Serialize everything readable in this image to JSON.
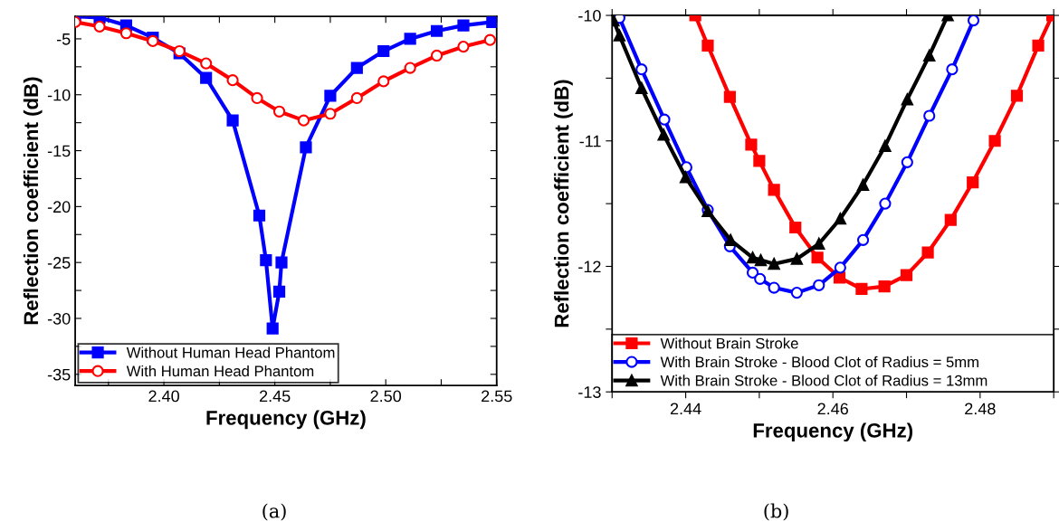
{
  "chart_data": [
    {
      "type": "line",
      "xlabel": "Frequency (GHz)",
      "ylabel": "Reflection coefficient (dB)",
      "annotations": [
        "(a)"
      ],
      "xlim": [
        2.36,
        2.55
      ],
      "ylim": [
        -36,
        -3
      ],
      "xticks": [
        {
          "value": 2.375,
          "label": null
        },
        {
          "value": 2.4,
          "label": "2.40"
        },
        {
          "value": 2.425,
          "label": null
        },
        2.45,
        {
          "value": 2.475,
          "label": null
        },
        {
          "value": 2.5,
          "label": "2.50"
        },
        {
          "value": 2.525,
          "label": null
        },
        2.55
      ],
      "yticks": [
        -35,
        {
          "value": -32.5,
          "label": null
        },
        -30,
        {
          "value": -27.5,
          "label": null
        },
        -25,
        {
          "value": -22.5,
          "label": null
        },
        -20,
        {
          "value": -17.5,
          "label": null
        },
        -15,
        {
          "value": -12.5,
          "label": null
        },
        -10,
        {
          "value": -7.5,
          "label": null
        },
        -5
      ],
      "legend": "bottom left",
      "grid": false,
      "line_style": "solid",
      "series": [
        {
          "name": "Without Human Head Phantom",
          "color": "#0000ff",
          "marker": "square",
          "x": [
            2.36,
            2.371,
            2.383,
            2.395,
            2.407,
            2.419,
            2.431,
            2.443,
            2.446,
            2.449,
            2.452,
            2.453,
            2.464,
            2.475,
            2.487,
            2.499,
            2.511,
            2.523,
            2.535,
            2.548
          ],
          "values": [
            -3.0,
            -3.1,
            -3.8,
            -4.9,
            -6.3,
            -8.5,
            -12.3,
            -20.8,
            -24.8,
            -30.9,
            -27.6,
            -25.0,
            -14.7,
            -10.1,
            -7.6,
            -6.1,
            -5.0,
            -4.3,
            -3.8,
            -3.5
          ]
        },
        {
          "name": "With Human Head Phantom",
          "color": "#ff0000",
          "marker": "circle",
          "x": [
            2.36,
            2.371,
            2.383,
            2.395,
            2.407,
            2.419,
            2.431,
            2.442,
            2.452,
            2.463,
            2.475,
            2.487,
            2.499,
            2.511,
            2.523,
            2.535,
            2.547
          ],
          "values": [
            -3.5,
            -3.9,
            -4.5,
            -5.2,
            -6.1,
            -7.2,
            -8.7,
            -10.3,
            -11.5,
            -12.3,
            -11.7,
            -10.3,
            -8.8,
            -7.6,
            -6.5,
            -5.7,
            -5.1
          ]
        }
      ]
    },
    {
      "type": "line",
      "xlabel": "Frequency (GHz)",
      "ylabel": "Reflection coefficient (dB)",
      "annotations": [
        "(b)"
      ],
      "xlim": [
        2.43,
        2.49
      ],
      "ylim": [
        -13,
        -10
      ],
      "xticks": [
        {
          "value": 2.43,
          "label": null
        },
        2.44,
        {
          "value": 2.45,
          "label": null
        },
        2.46,
        {
          "value": 2.47,
          "label": null
        },
        2.48,
        {
          "value": 2.49,
          "label": null
        }
      ],
      "yticks": [
        -13,
        {
          "value": -12.5,
          "label": null
        },
        -12,
        {
          "value": -11.5,
          "label": null
        },
        -11,
        {
          "value": -10.5,
          "label": null
        },
        -10
      ],
      "legend": "bottom",
      "grid": false,
      "line_style": "solid",
      "series": [
        {
          "name": "Without Brain Stroke",
          "color": "#ff0000",
          "marker": "square",
          "x": [
            2.4413,
            2.443,
            2.446,
            2.4489,
            2.45,
            2.452,
            2.4549,
            2.4579,
            2.4609,
            2.4639,
            2.467,
            2.47,
            2.4729,
            2.476,
            2.479,
            2.482,
            2.485,
            2.4879,
            2.4898
          ],
          "values": [
            -10.0,
            -10.24,
            -10.65,
            -11.03,
            -11.16,
            -11.39,
            -11.69,
            -11.93,
            -12.09,
            -12.18,
            -12.16,
            -12.07,
            -11.89,
            -11.63,
            -11.33,
            -11.0,
            -10.64,
            -10.24,
            -10.0
          ]
        },
        {
          "name": "With Brain Stroke - Blood Clot of Radius = 5mm",
          "color": "#0000ff",
          "marker": "circle",
          "x": [
            2.431,
            2.434,
            2.4371,
            2.4401,
            2.443,
            2.446,
            2.4491,
            2.4501,
            2.452,
            2.4551,
            2.4581,
            2.461,
            2.4641,
            2.4671,
            2.4701,
            2.4731,
            2.4762,
            2.4791
          ],
          "values": [
            -10.02,
            -10.43,
            -10.83,
            -11.21,
            -11.55,
            -11.84,
            -12.05,
            -12.1,
            -12.17,
            -12.21,
            -12.15,
            -12.01,
            -11.79,
            -11.5,
            -11.17,
            -10.8,
            -10.43,
            -10.04
          ]
        },
        {
          "name": "With Brain Stroke - Blood Clot of Radius = 13mm",
          "color": "#000000",
          "marker": "triangle",
          "x": [
            2.4302,
            2.431,
            2.434,
            2.437,
            2.44,
            2.443,
            2.4461,
            2.4491,
            2.4502,
            2.452,
            2.4551,
            2.4581,
            2.461,
            2.4641,
            2.4671,
            2.4701,
            2.4731,
            2.4756
          ],
          "values": [
            -10.04,
            -10.16,
            -10.58,
            -10.95,
            -11.29,
            -11.56,
            -11.79,
            -11.93,
            -11.95,
            -11.98,
            -11.94,
            -11.82,
            -11.62,
            -11.35,
            -11.04,
            -10.67,
            -10.32,
            -10.0
          ]
        }
      ]
    }
  ]
}
